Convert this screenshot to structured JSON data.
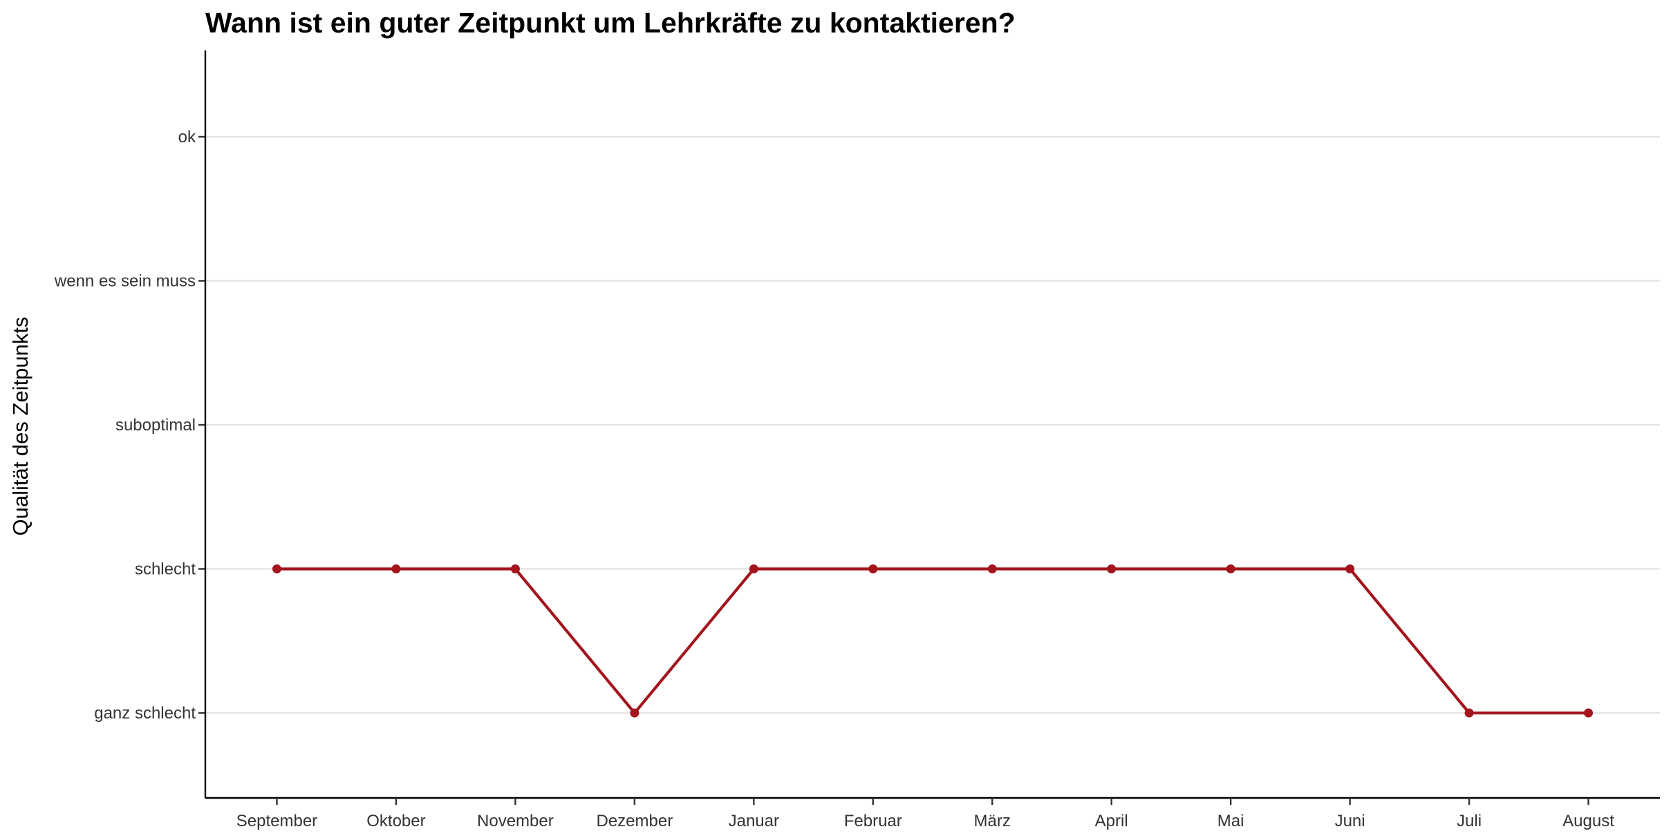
{
  "chart_data": {
    "type": "line",
    "title": "Wann ist ein guter Zeitpunkt um Lehrkräfte zu kontaktieren?",
    "xlabel": "",
    "ylabel": "Qualität des Zeitpunkts",
    "categories": [
      "September",
      "Oktober",
      "November",
      "Dezember",
      "Januar",
      "Februar",
      "März",
      "April",
      "Mai",
      "Juni",
      "Juli",
      "August"
    ],
    "y_levels": [
      "ganz schlecht",
      "schlecht",
      "suboptimal",
      "wenn es sein muss",
      "ok"
    ],
    "series": [
      {
        "color": "#a3141c",
        "values": [
          "schlecht",
          "schlecht",
          "schlecht",
          "ganz schlecht",
          "schlecht",
          "schlecht",
          "schlecht",
          "schlecht",
          "schlecht",
          "schlecht",
          "ganz schlecht",
          "ganz schlecht"
        ]
      }
    ],
    "grid": "horizontal-major",
    "legend": "none"
  }
}
